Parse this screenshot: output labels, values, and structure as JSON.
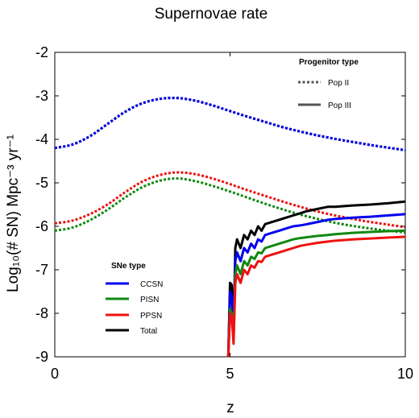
{
  "chart_data": {
    "type": "line",
    "title": "Supernovae rate",
    "xlabel": "z",
    "ylabel": "Log₁₀(# SN) Mpc⁻³ yr⁻¹",
    "xlim": [
      0,
      10
    ],
    "ylim": [
      -9,
      -2
    ],
    "xticks": [
      "0",
      "5",
      "10"
    ],
    "yticks": [
      "-9",
      "-8",
      "-7",
      "-6",
      "-5",
      "-4",
      "-3",
      "-2"
    ],
    "grid": false,
    "progenitor_legend": {
      "title": "Progenitor type",
      "placement": "top-right",
      "entries": [
        {
          "label": "Pop II",
          "style": "dotted",
          "color": "#555555"
        },
        {
          "label": "Pop III",
          "style": "solid",
          "color": "#555555"
        }
      ]
    },
    "sne_legend": {
      "title": "SNe type",
      "placement": "bottom-left",
      "entries": [
        {
          "label": "CCSN",
          "color": "#0000ee"
        },
        {
          "label": "PISN",
          "color": "#118811"
        },
        {
          "label": "PPSN",
          "color": "#ee1111"
        },
        {
          "label": "Total",
          "color": "#000000"
        }
      ]
    },
    "series": [
      {
        "sne": "Total",
        "progenitor": "Pop II",
        "color": "#000000",
        "x": [
          0,
          0.5,
          1,
          1.5,
          2,
          2.5,
          3,
          3.5,
          4,
          4.5,
          5,
          5.5,
          6,
          6.5,
          7,
          7.5,
          8,
          8.5,
          9,
          9.5,
          10
        ],
        "y": [
          -4.2,
          -4.12,
          -3.93,
          -3.65,
          -3.37,
          -3.17,
          -3.07,
          -3.05,
          -3.11,
          -3.22,
          -3.35,
          -3.48,
          -3.6,
          -3.72,
          -3.82,
          -3.91,
          -3.99,
          -4.06,
          -4.13,
          -4.19,
          -4.25
        ]
      },
      {
        "sne": "CCSN",
        "progenitor": "Pop II",
        "color": "#0000ee",
        "x": [
          0,
          0.5,
          1,
          1.5,
          2,
          2.5,
          3,
          3.5,
          4,
          4.5,
          5,
          5.5,
          6,
          6.5,
          7,
          7.5,
          8,
          8.5,
          9,
          9.5,
          10
        ],
        "y": [
          -4.2,
          -4.12,
          -3.93,
          -3.65,
          -3.37,
          -3.17,
          -3.07,
          -3.05,
          -3.11,
          -3.22,
          -3.35,
          -3.48,
          -3.6,
          -3.72,
          -3.82,
          -3.91,
          -3.99,
          -4.06,
          -4.13,
          -4.19,
          -4.25
        ]
      },
      {
        "sne": "PPSN",
        "progenitor": "Pop II",
        "color": "#ee1111",
        "x": [
          0,
          0.5,
          1,
          1.5,
          2,
          2.5,
          3,
          3.5,
          4,
          4.5,
          5,
          5.5,
          6,
          6.5,
          7,
          7.5,
          8,
          8.5,
          9,
          9.5,
          10
        ],
        "y": [
          -5.93,
          -5.87,
          -5.72,
          -5.5,
          -5.22,
          -4.97,
          -4.82,
          -4.76,
          -4.8,
          -4.9,
          -5.03,
          -5.17,
          -5.3,
          -5.43,
          -5.55,
          -5.66,
          -5.75,
          -5.83,
          -5.9,
          -5.96,
          -6.02
        ]
      },
      {
        "sne": "PISN",
        "progenitor": "Pop II",
        "color": "#118811",
        "x": [
          0,
          0.5,
          1,
          1.5,
          2,
          2.5,
          3,
          3.5,
          4,
          4.5,
          5,
          5.5,
          6,
          6.5,
          7,
          7.5,
          8,
          8.5,
          9,
          9.5,
          10
        ],
        "y": [
          -6.1,
          -6.03,
          -5.86,
          -5.62,
          -5.34,
          -5.1,
          -4.95,
          -4.9,
          -4.96,
          -5.07,
          -5.2,
          -5.34,
          -5.48,
          -5.61,
          -5.73,
          -5.83,
          -5.92,
          -5.99,
          -6.05,
          -6.1,
          -6.14
        ]
      },
      {
        "sne": "Total",
        "progenitor": "Pop III",
        "color": "#000000",
        "x": [
          4.95,
          5.0,
          5.05,
          5.1,
          5.15,
          5.2,
          5.3,
          5.4,
          5.5,
          5.6,
          5.7,
          5.8,
          5.9,
          6.0,
          6.2,
          6.4,
          6.6,
          6.8,
          7.0,
          7.2,
          7.5,
          7.8,
          8.0,
          8.5,
          9.0,
          9.5,
          10.0
        ],
        "y": [
          -9.0,
          -7.3,
          -7.35,
          -8.55,
          -6.5,
          -6.3,
          -6.5,
          -6.2,
          -6.3,
          -6.1,
          -6.2,
          -6.0,
          -6.1,
          -5.95,
          -5.9,
          -5.85,
          -5.8,
          -5.75,
          -5.7,
          -5.65,
          -5.6,
          -5.55,
          -5.55,
          -5.52,
          -5.5,
          -5.47,
          -5.43
        ]
      },
      {
        "sne": "CCSN",
        "progenitor": "Pop III",
        "color": "#0000ee",
        "x": [
          4.95,
          5.0,
          5.05,
          5.1,
          5.15,
          5.2,
          5.3,
          5.4,
          5.5,
          5.6,
          5.7,
          5.8,
          5.9,
          6.0,
          6.2,
          6.4,
          6.6,
          6.8,
          7.0,
          7.2,
          7.5,
          7.8,
          8.0,
          8.5,
          9.0,
          9.5,
          10.0
        ],
        "y": [
          -9.0,
          -7.5,
          -7.6,
          -8.5,
          -6.8,
          -6.6,
          -6.8,
          -6.5,
          -6.6,
          -6.4,
          -6.5,
          -6.3,
          -6.35,
          -6.2,
          -6.15,
          -6.1,
          -6.05,
          -6.0,
          -5.98,
          -5.95,
          -5.9,
          -5.85,
          -5.83,
          -5.8,
          -5.78,
          -5.75,
          -5.72
        ]
      },
      {
        "sne": "PISN",
        "progenitor": "Pop III",
        "color": "#118811",
        "x": [
          4.95,
          5.0,
          5.05,
          5.1,
          5.15,
          5.2,
          5.3,
          5.4,
          5.5,
          5.6,
          5.7,
          5.8,
          5.9,
          6.0,
          6.2,
          6.4,
          6.6,
          6.8,
          7.0,
          7.2,
          7.5,
          7.8,
          8.0,
          8.5,
          9.0,
          9.5,
          10.0
        ],
        "y": [
          -9.0,
          -7.9,
          -8.0,
          -8.6,
          -7.1,
          -6.9,
          -7.1,
          -6.8,
          -6.9,
          -6.7,
          -6.75,
          -6.6,
          -6.62,
          -6.5,
          -6.45,
          -6.4,
          -6.35,
          -6.3,
          -6.27,
          -6.25,
          -6.22,
          -6.2,
          -6.18,
          -6.15,
          -6.13,
          -6.11,
          -6.1
        ]
      },
      {
        "sne": "PPSN",
        "progenitor": "Pop III",
        "color": "#ee1111",
        "x": [
          4.95,
          5.0,
          5.05,
          5.1,
          5.15,
          5.2,
          5.3,
          5.4,
          5.5,
          5.6,
          5.7,
          5.8,
          5.9,
          6.0,
          6.2,
          6.4,
          6.6,
          6.8,
          7.0,
          7.2,
          7.5,
          7.8,
          8.0,
          8.5,
          9.0,
          9.5,
          10.0
        ],
        "y": [
          -9.0,
          -8.0,
          -8.1,
          -8.7,
          -7.3,
          -7.1,
          -7.3,
          -7.0,
          -7.1,
          -6.9,
          -6.95,
          -6.8,
          -6.82,
          -6.7,
          -6.65,
          -6.6,
          -6.55,
          -6.5,
          -6.45,
          -6.42,
          -6.38,
          -6.35,
          -6.33,
          -6.3,
          -6.28,
          -6.26,
          -6.24
        ]
      }
    ]
  }
}
